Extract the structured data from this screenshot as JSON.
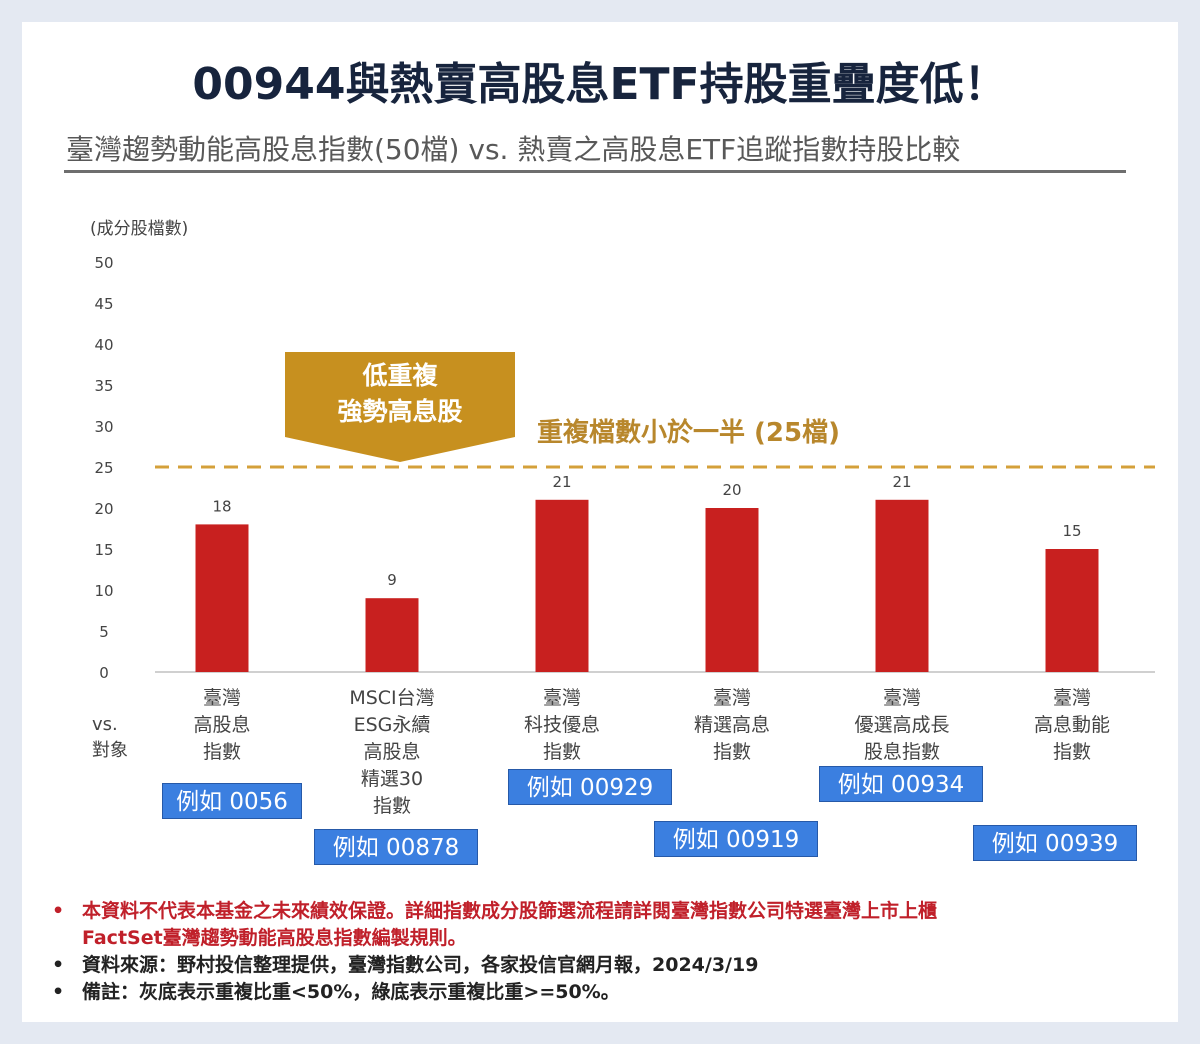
{
  "title": "00944與熱賣高股息ETF持股重疊度低！",
  "subtitle": "臺灣趨勢動能高股息指數(50檔) vs. 熱賣之高股息ETF追蹤指數持股比較",
  "chart_data": {
    "type": "bar",
    "ylabel": "(成分股檔數)",
    "ylim": [
      0,
      50
    ],
    "yticks": [
      0,
      5,
      10,
      15,
      20,
      25,
      30,
      35,
      40,
      45,
      50
    ],
    "categories": [
      [
        "臺灣",
        "高股息",
        "指數"
      ],
      [
        "MSCI台灣",
        "ESG永續",
        "高股息",
        "精選30",
        "指數"
      ],
      [
        "臺灣",
        "科技優息",
        "指數"
      ],
      [
        "臺灣",
        "精選高息",
        "指數"
      ],
      [
        "臺灣",
        "優選高成長",
        "股息指數"
      ],
      [
        "臺灣",
        "高息動能",
        "指數"
      ]
    ],
    "values": [
      18,
      9,
      21,
      20,
      21,
      15
    ],
    "examples": [
      "例如 0056",
      "例如 00878",
      "例如 00929",
      "例如 00919",
      "例如 00934",
      "例如 00939"
    ],
    "reference_line": {
      "value": 25,
      "label": "重複檔數小於一半 (25檔)"
    },
    "callout": [
      "低重複",
      "強勢高息股"
    ],
    "x_axis_label": [
      "vs.",
      "對象"
    ],
    "colors": {
      "bar": "#c8201f",
      "reference": "#d4a03a",
      "callout": "#c7901f",
      "example_box": "#3b7fe0"
    }
  },
  "footnotes": [
    {
      "text": "本資料不代表本基金之未來績效保證。詳細指數成分股篩選流程請詳閱臺灣指數公司特選臺灣上市上櫃",
      "cont": "FactSet臺灣趨勢動能高股息指數編製規則。",
      "color": "#c0202a"
    },
    {
      "text": "資料來源：野村投信整理提供，臺灣指數公司，各家投信官網月報，2024/3/19",
      "color": "#222"
    },
    {
      "text": "備註：灰底表示重複比重<50%，綠底表示重複比重>=50%。",
      "color": "#222"
    }
  ]
}
